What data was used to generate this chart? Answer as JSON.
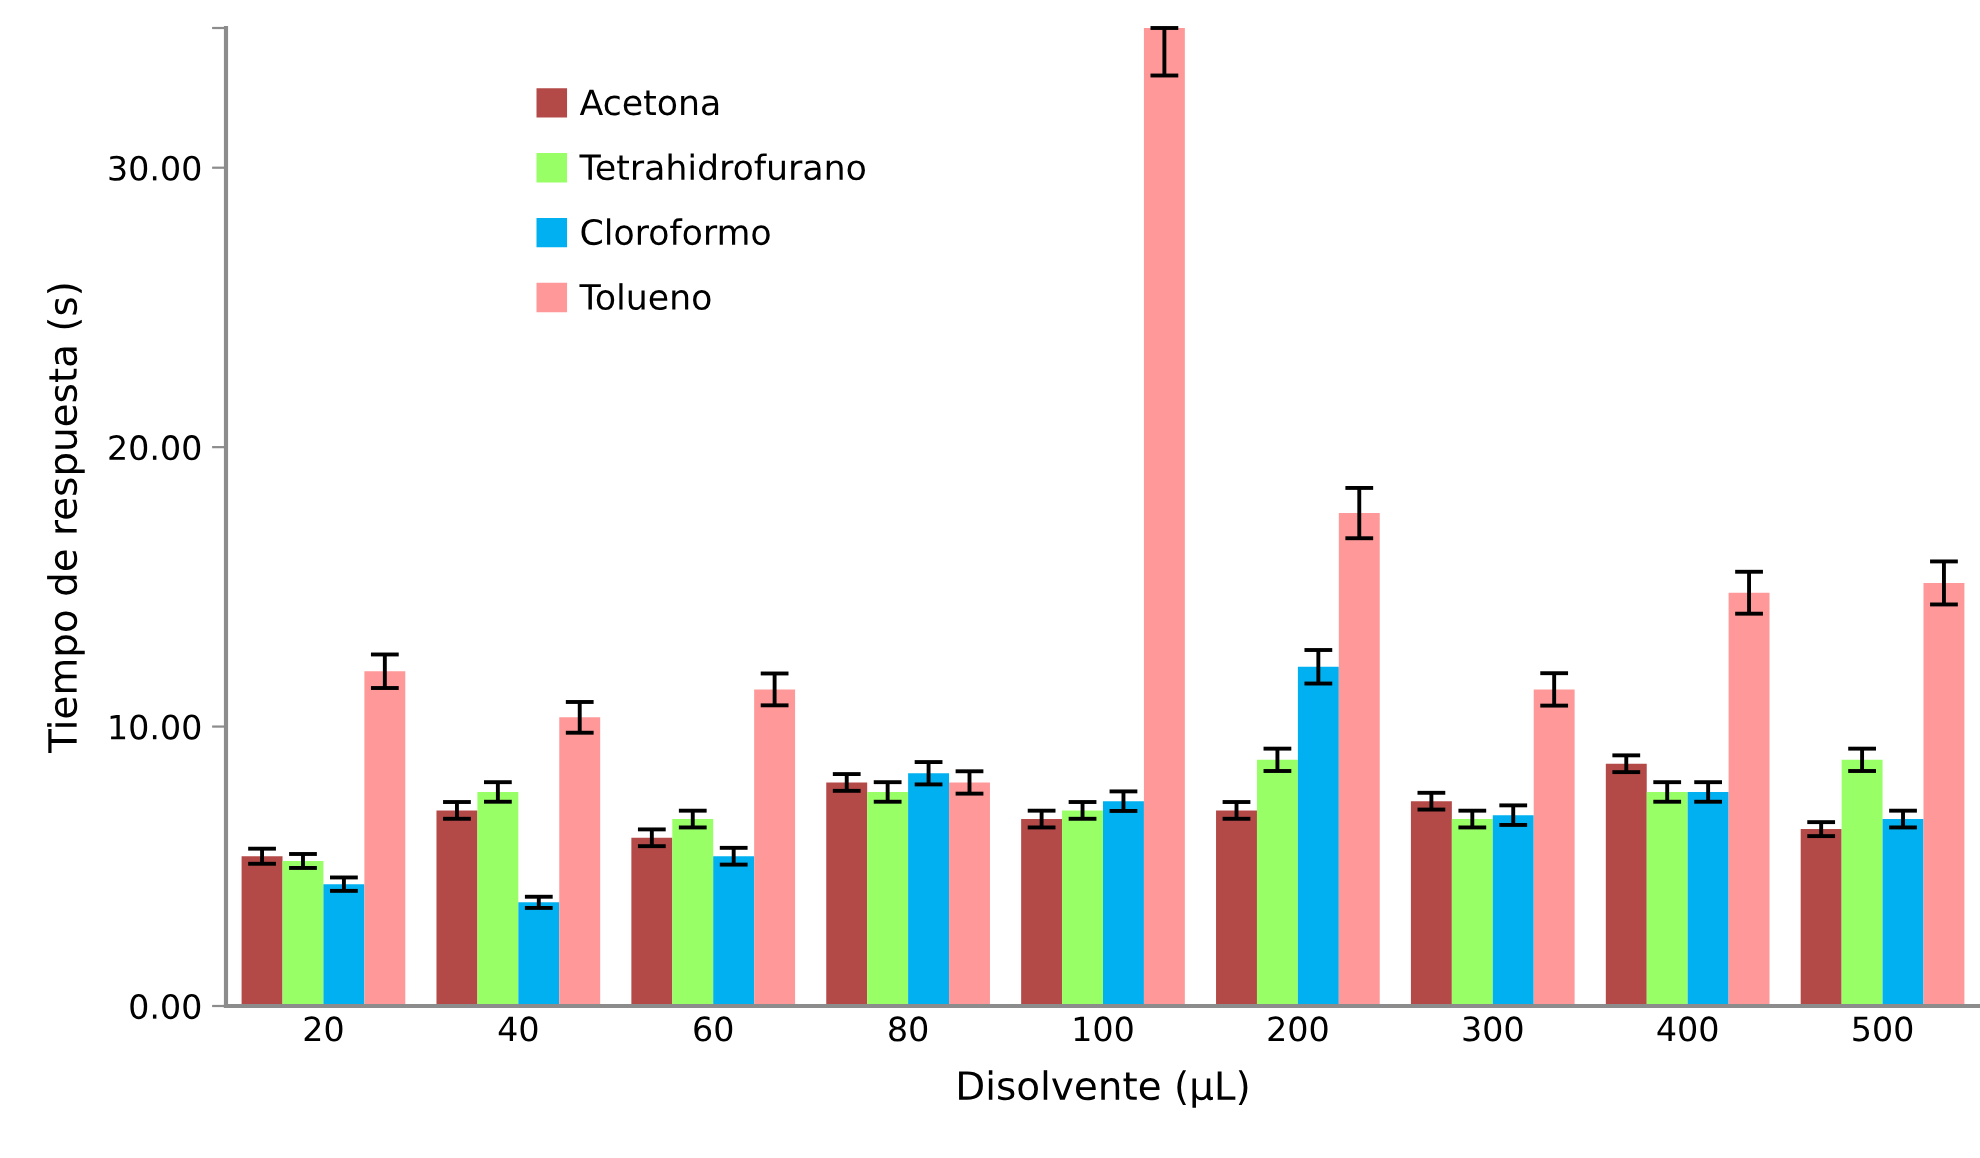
{
  "chart_data": {
    "type": "bar",
    "xlabel": "Disolvente (µL)",
    "ylabel": "Tiempo de respuesta (s)",
    "categories": [
      "20",
      "40",
      "60",
      "80",
      "100",
      "200",
      "300",
      "400",
      "500"
    ],
    "series": [
      {
        "name": "Acetona",
        "color": "#b34a48",
        "values": [
          5.36,
          7.0,
          6.02,
          8.0,
          6.69,
          7.0,
          7.33,
          8.67,
          6.33
        ],
        "errors": [
          0.27,
          0.3,
          0.3,
          0.3,
          0.3,
          0.3,
          0.3,
          0.3,
          0.25
        ]
      },
      {
        "name": "Tetrahidrofurano",
        "color": "#99ff66",
        "values": [
          5.19,
          7.66,
          6.69,
          7.66,
          7.0,
          8.81,
          6.69,
          7.66,
          8.81
        ],
        "errors": [
          0.25,
          0.35,
          0.3,
          0.35,
          0.3,
          0.4,
          0.3,
          0.35,
          0.4
        ]
      },
      {
        "name": "Cloroformo",
        "color": "#00b0f0",
        "values": [
          4.36,
          3.71,
          5.36,
          8.33,
          7.33,
          12.14,
          6.83,
          7.66,
          6.69
        ],
        "errors": [
          0.24,
          0.2,
          0.3,
          0.4,
          0.35,
          0.6,
          0.35,
          0.35,
          0.3
        ]
      },
      {
        "name": "Tolueno",
        "color": "#ff9999",
        "values": [
          11.98,
          10.33,
          11.33,
          8.0,
          35,
          17.64,
          11.33,
          14.79,
          15.14
        ],
        "errors": [
          0.6,
          0.55,
          0.57,
          0.4,
          [
            33.3,
            35
          ],
          0.9,
          0.58,
          0.75,
          0.77
        ]
      }
    ],
    "ylim": [
      0,
      35
    ],
    "yticks": [
      {
        "value": 0,
        "label": "0.00"
      },
      {
        "value": 10,
        "label": "10.00"
      },
      {
        "value": 20,
        "label": "20.00"
      },
      {
        "value": 30,
        "label": "30.00"
      },
      {
        "value": 35,
        "label": null
      }
    ],
    "grid": false,
    "legend": "top left"
  }
}
